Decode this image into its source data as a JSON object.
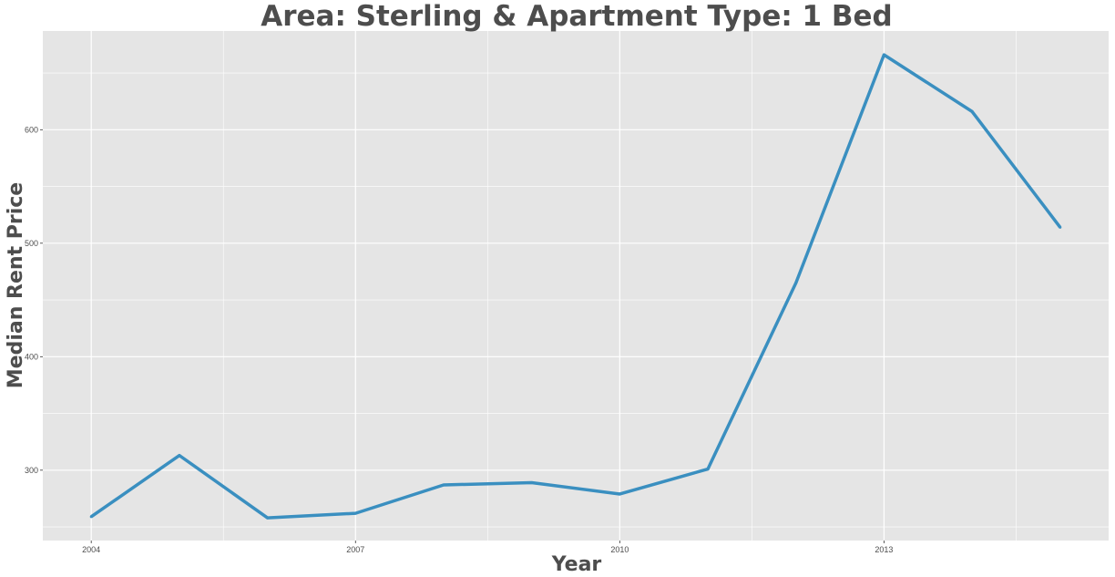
{
  "chart_data": {
    "type": "line",
    "title": "Area: Sterling & Apartment Type: 1 Bed",
    "xlabel": "Year",
    "ylabel": "Median Rent Price",
    "x": [
      2004,
      2005,
      2006,
      2007,
      2008,
      2009,
      2010,
      2011,
      2012,
      2013,
      2014,
      2015
    ],
    "series": [
      {
        "values": [
          259,
          313,
          258,
          262,
          287,
          289,
          279,
          301,
          465,
          666,
          616,
          514
        ],
        "color": "#3a8fc0"
      }
    ],
    "x_ticks": [
      2004,
      2007,
      2010,
      2013
    ],
    "x_tick_labels": [
      "2004",
      "2007",
      "2010",
      "2013"
    ],
    "y_ticks": [
      300,
      400,
      500,
      600
    ],
    "y_tick_labels": [
      "300",
      "400",
      "500",
      "600"
    ],
    "xlim": [
      2003.45,
      2015.55
    ],
    "ylim": [
      238,
      687
    ],
    "grid": true,
    "panel_background": "#e5e5e5",
    "grid_color": "#ffffff"
  }
}
